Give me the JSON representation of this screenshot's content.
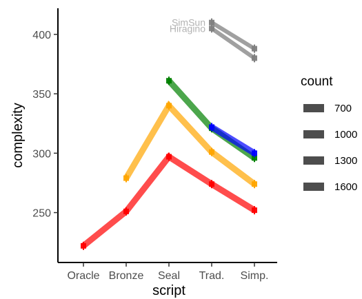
{
  "chart_data": {
    "type": "line",
    "xlabel": "script",
    "ylabel": "complexity",
    "categories": [
      "Oracle",
      "Bronze",
      "Seal",
      "Trad.",
      "Simp."
    ],
    "yticks": [
      250,
      300,
      350,
      400
    ],
    "ylim": [
      208,
      422
    ],
    "grid": false,
    "legend": {
      "title": "count",
      "placement": "right",
      "entries": [
        "700",
        "1000",
        "1300",
        "1600"
      ]
    },
    "series": [
      {
        "color": "#ff0000",
        "values": [
          222,
          251,
          297,
          274,
          252
        ]
      },
      {
        "color": "#ffa500",
        "values": [
          null,
          279,
          340,
          301,
          274
        ]
      },
      {
        "color": "#008000",
        "values": [
          null,
          null,
          361,
          321,
          296
        ]
      },
      {
        "color": "#0000ff",
        "values": [
          null,
          null,
          null,
          322,
          300
        ]
      },
      {
        "name": "SimSun",
        "color": "#808080",
        "values": [
          null,
          null,
          null,
          410,
          388
        ]
      },
      {
        "name": "Hiragino",
        "color": "#808080",
        "values": [
          null,
          null,
          null,
          405,
          380
        ]
      }
    ]
  }
}
